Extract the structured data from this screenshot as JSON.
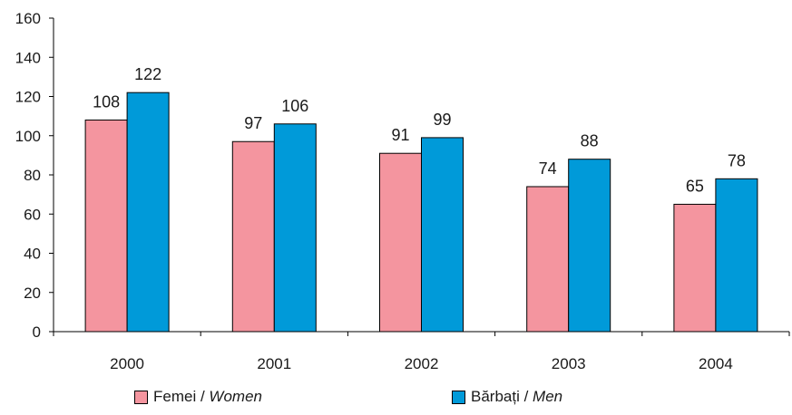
{
  "chart_data": {
    "type": "bar",
    "title": "",
    "xlabel": "",
    "ylabel": "",
    "categories": [
      "2000",
      "2001",
      "2002",
      "2003",
      "2004"
    ],
    "series": [
      {
        "name": "Femei / Women",
        "name_plain": "Femei / ",
        "name_italic": "Women",
        "color": "#f4959f",
        "values": [
          108,
          97,
          91,
          74,
          65
        ]
      },
      {
        "name": "Bărbați / Men",
        "name_plain": "Bărbați / ",
        "name_italic": "Men",
        "color": "#009ad9",
        "values": [
          122,
          106,
          99,
          88,
          78
        ]
      }
    ],
    "ylim": [
      0,
      160
    ],
    "yticks": [
      0,
      20,
      40,
      60,
      80,
      100,
      120,
      140,
      160
    ],
    "grid": false,
    "legend_position": "bottom"
  }
}
